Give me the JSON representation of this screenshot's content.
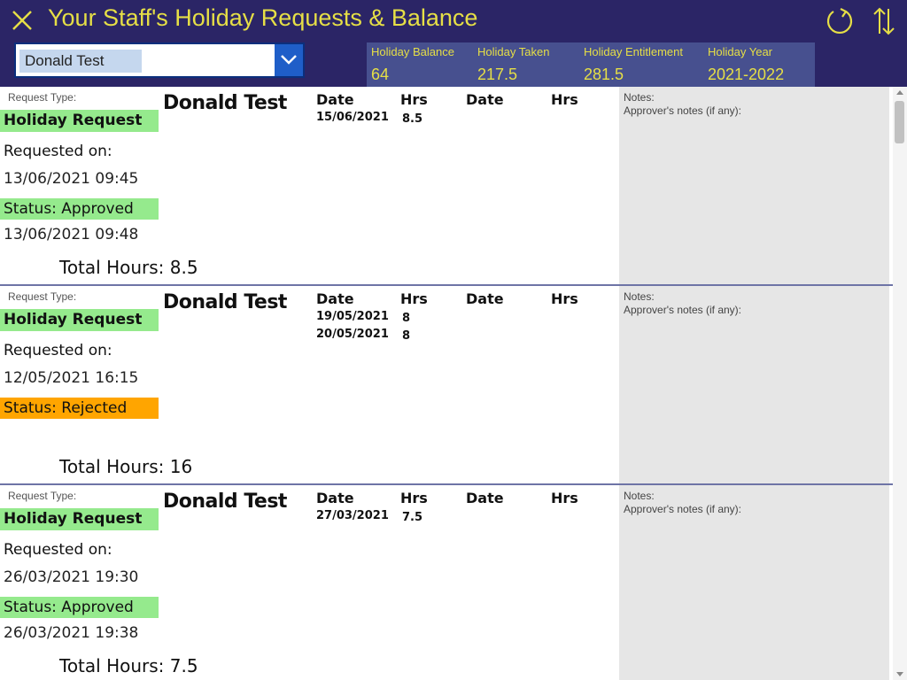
{
  "header": {
    "title": "Your Staff's Holiday Requests & Balance",
    "close_icon": "close-icon",
    "refresh_icon": "refresh-icon",
    "sort_icon": "sort-icon"
  },
  "staff_select": {
    "value": "Donald Test",
    "chevron_icon": "chevron-down-icon"
  },
  "stats": [
    {
      "label": "Holiday Balance",
      "value": "64"
    },
    {
      "label": "Holiday Taken",
      "value": "217.5"
    },
    {
      "label": "Holiday Entitlement",
      "value": "281.5"
    },
    {
      "label": "Holiday Year",
      "value": "2021-2022"
    }
  ],
  "labels": {
    "request_type": "Request Type:",
    "requested_on": "Requested on:",
    "date": "Date",
    "hrs": "Hrs",
    "notes": "Notes:",
    "approver_notes": "Approver's notes (if any):"
  },
  "requests": [
    {
      "employee": "Donald Test",
      "type": "Holiday Request",
      "requested_on": "13/06/2021 09:45",
      "status": "Status: Approved",
      "status_time": "13/06/2021 09:48",
      "status_color": "#95ea8d",
      "total": "Total Hours: 8.5",
      "days": [
        {
          "date": "15/06/2021",
          "hrs": "8.5"
        }
      ]
    },
    {
      "employee": "Donald Test",
      "type": "Holiday Request",
      "requested_on": "12/05/2021 16:15",
      "status": "Status: Rejected",
      "status_time": "",
      "status_color": "#ffa500",
      "total": "Total Hours: 16",
      "days": [
        {
          "date": "19/05/2021",
          "hrs": "8"
        },
        {
          "date": "20/05/2021",
          "hrs": "8"
        }
      ]
    },
    {
      "employee": "Donald Test",
      "type": "Holiday Request",
      "requested_on": "26/03/2021 19:30",
      "status": "Status: Approved",
      "status_time": "26/03/2021 19:38",
      "status_color": "#95ea8d",
      "total": "Total Hours: 7.5",
      "days": [
        {
          "date": "27/03/2021",
          "hrs": "7.5"
        }
      ]
    }
  ],
  "colors": {
    "header_bg": "#2b2566",
    "accent_yellow": "#e6df46",
    "stats_bg": "#47508f",
    "approved": "#95ea8d",
    "rejected": "#ffa500"
  }
}
